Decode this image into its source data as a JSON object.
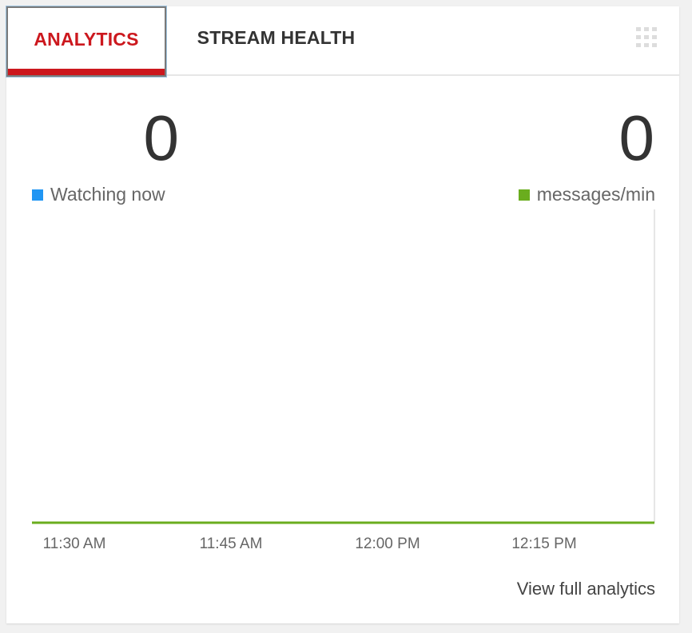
{
  "tabs": [
    {
      "label": "ANALYTICS",
      "active": true
    },
    {
      "label": "STREAM HEALTH",
      "active": false
    }
  ],
  "menu_icon": "grid-icon",
  "stats": {
    "watching": {
      "value": "0",
      "label": "Watching now",
      "color": "#2196f3"
    },
    "messages": {
      "value": "0",
      "label": "messages/min",
      "color": "#6aad1e"
    }
  },
  "chart_data": {
    "type": "line",
    "x_ticks": [
      "11:30 AM",
      "11:45 AM",
      "12:00 PM",
      "12:15 PM"
    ],
    "series": [
      {
        "name": "Watching now",
        "color": "#2196f3",
        "values": [
          0,
          0,
          0,
          0,
          0
        ]
      },
      {
        "name": "messages/min",
        "color": "#6aad1e",
        "values": [
          0,
          0,
          0,
          0,
          0
        ]
      }
    ]
  },
  "footer": {
    "link": "View full analytics"
  },
  "colors": {
    "accent": "#cc181e",
    "background": "#f1f1f1"
  }
}
